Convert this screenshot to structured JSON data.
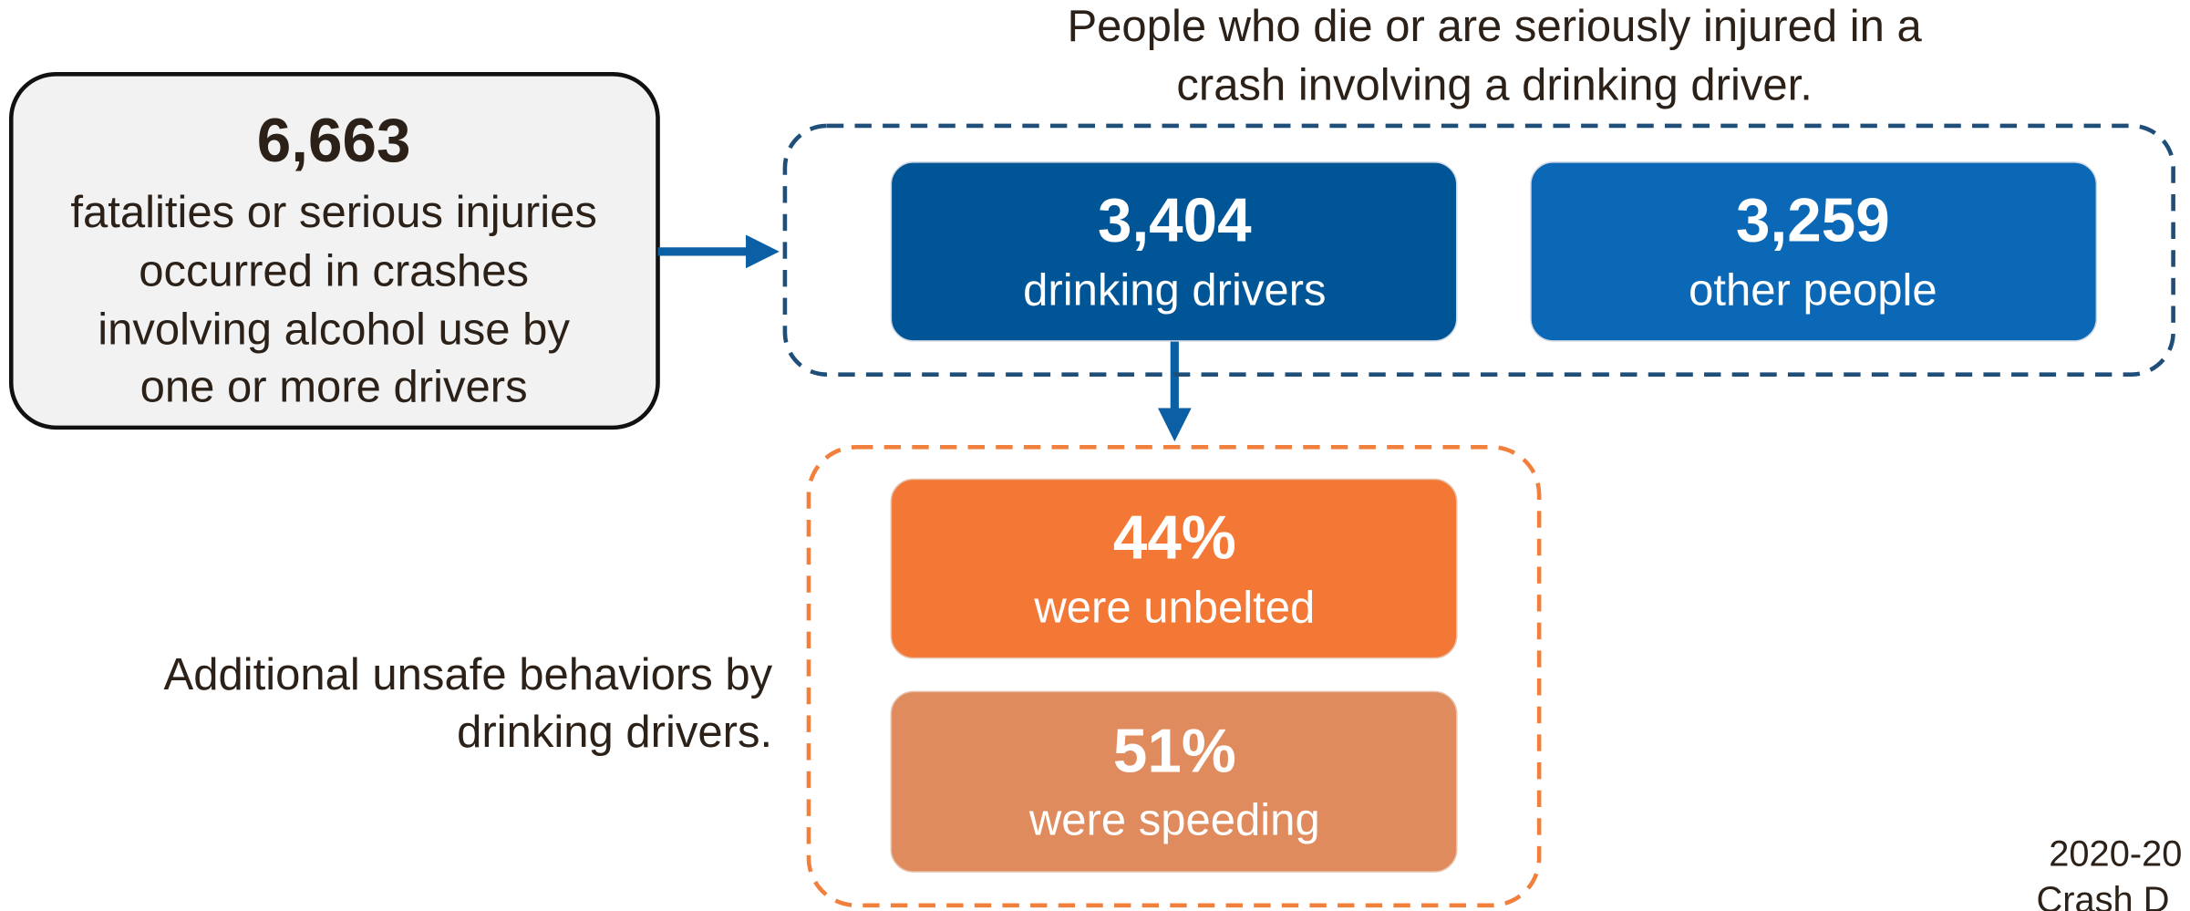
{
  "total_box": {
    "value": "6,663",
    "description": [
      "fatalities or serious injuries",
      "occurred in crashes",
      "involving alcohol use by",
      "one or more drivers"
    ]
  },
  "people_group": {
    "caption": [
      "People who die or are seriously injured in a",
      "crash involving a drinking driver."
    ],
    "boxes": [
      {
        "value": "3,404",
        "label": "drinking drivers"
      },
      {
        "value": "3,259",
        "label": "other people"
      }
    ]
  },
  "behaviors_group": {
    "caption": [
      "Additional unsafe behaviors by",
      "drinking drivers."
    ],
    "boxes": [
      {
        "value": "44%",
        "label": "were unbelted"
      },
      {
        "value": "51%",
        "label": "were speeding"
      }
    ]
  },
  "source": [
    "2020-20",
    "Crash D"
  ]
}
